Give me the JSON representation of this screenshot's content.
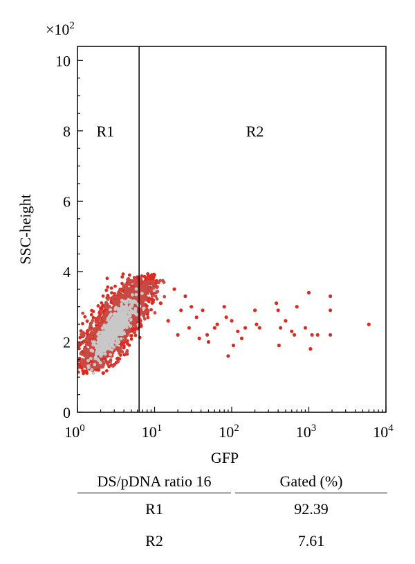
{
  "chart_data": {
    "type": "scatter",
    "subtype": "flow-cytometry-density-dot-plot",
    "multiplier_label": "×10",
    "multiplier_exp": "2",
    "xlabel": "GFP",
    "ylabel": "SSC-height",
    "x_scale": "log",
    "xlim": [
      1,
      10000
    ],
    "ylim": [
      0,
      10.4
    ],
    "x_ticks": [
      {
        "base": "10",
        "exp": "0",
        "value": 1
      },
      {
        "base": "10",
        "exp": "1",
        "value": 10
      },
      {
        "base": "10",
        "exp": "2",
        "value": 100
      },
      {
        "base": "10",
        "exp": "3",
        "value": 1000
      },
      {
        "base": "10",
        "exp": "4",
        "value": 10000
      }
    ],
    "y_ticks": [
      {
        "label": "0",
        "value": 0
      },
      {
        "label": "2",
        "value": 2
      },
      {
        "label": "4",
        "value": 4
      },
      {
        "label": "6",
        "value": 6
      },
      {
        "label": "8",
        "value": 8
      },
      {
        "label": "10",
        "value": 10
      }
    ],
    "gate_x": 6.3,
    "regions": [
      {
        "label": "R1",
        "x": 2.3,
        "y": 8
      },
      {
        "label": "R2",
        "x": 200,
        "y": 8
      }
    ],
    "population_colors": {
      "core": "#c8c8c8",
      "mid": "#c84a44",
      "edge": "#dd2a20"
    },
    "outlier_points": [
      [
        12,
        3.1
      ],
      [
        15,
        2.6
      ],
      [
        18,
        3.5
      ],
      [
        20,
        2.2
      ],
      [
        22,
        2.9
      ],
      [
        25,
        3.3
      ],
      [
        28,
        2.4
      ],
      [
        30,
        3.0
      ],
      [
        35,
        2.7
      ],
      [
        38,
        2.1
      ],
      [
        42,
        2.9
      ],
      [
        48,
        2.2
      ],
      [
        50,
        2.0
      ],
      [
        60,
        2.4
      ],
      [
        65,
        2.5
      ],
      [
        80,
        3.0
      ],
      [
        85,
        2.7
      ],
      [
        90,
        1.6
      ],
      [
        100,
        2.6
      ],
      [
        105,
        1.9
      ],
      [
        120,
        2.3
      ],
      [
        135,
        2.1
      ],
      [
        150,
        2.4
      ],
      [
        200,
        2.9
      ],
      [
        210,
        2.5
      ],
      [
        230,
        2.4
      ],
      [
        380,
        3.1
      ],
      [
        400,
        2.9
      ],
      [
        410,
        1.9
      ],
      [
        430,
        2.4
      ],
      [
        500,
        2.6
      ],
      [
        600,
        2.3
      ],
      [
        650,
        2.2
      ],
      [
        700,
        3.0
      ],
      [
        900,
        2.4
      ],
      [
        1000,
        3.4
      ],
      [
        1050,
        1.8
      ],
      [
        1100,
        2.2
      ],
      [
        1300,
        2.2
      ],
      [
        1900,
        3.3
      ],
      [
        1900,
        2.9
      ],
      [
        1900,
        2.2
      ],
      [
        6000,
        2.5
      ]
    ]
  },
  "table": {
    "col1_header": "DS/pDNA ratio 16",
    "col2_header": "Gated (%)",
    "rows": [
      {
        "region": "R1",
        "gated": "92.39"
      },
      {
        "region": "R2",
        "gated": "7.61"
      }
    ]
  }
}
